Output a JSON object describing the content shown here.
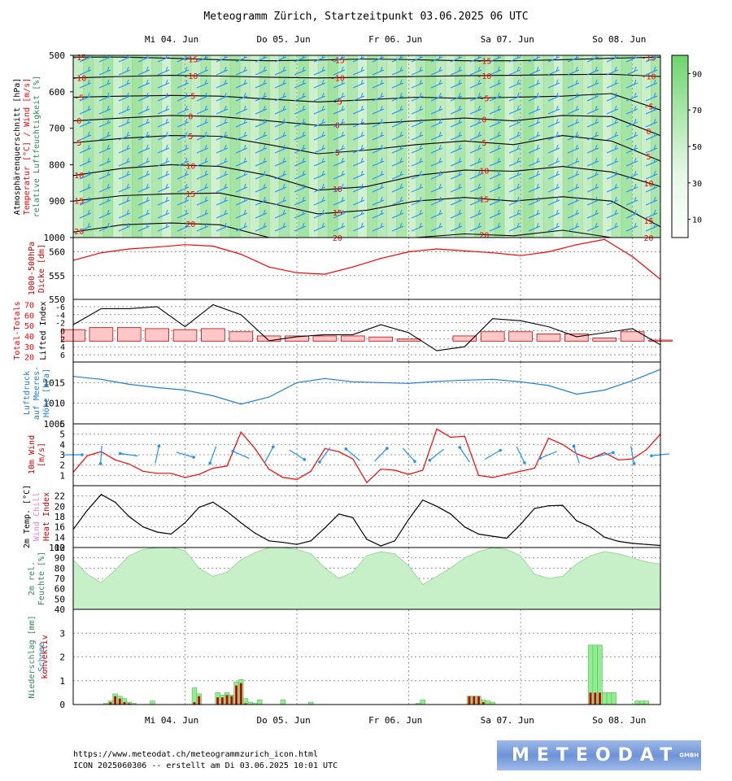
{
  "title": "Meteogramm Zürich, Startzeitpunkt 03.06.2025 06 UTC",
  "footer": {
    "url": "https://www.meteodat.ch/meteogrammzurich_icon.html",
    "run": "ICON 2025060306 -- erstellt am Di 03.06.2025 10:01 UTC"
  },
  "logo": {
    "text": "METEODAT",
    "suffix": "GMBH"
  },
  "colors": {
    "temp": "#ff0000",
    "wind": "#1e90ff",
    "humidity": "#9be09b",
    "precip": "#90ee90",
    "conv": "#cc0000",
    "grid": "#999999"
  },
  "chart_data": [
    {
      "type": "heatmap",
      "name": "atmosphere",
      "ylabel": [
        "Atmosphärenquerschnitt [hPa]",
        "Temperatur [°C] / Wind [m/s]",
        "relative Luftfeuchtigkeit [%]"
      ],
      "ylim": [
        1000,
        500
      ],
      "yticks": [
        500,
        600,
        700,
        800,
        900,
        1000
      ],
      "colorbar_ticks": [
        10,
        30,
        50,
        70,
        90
      ],
      "x_range_hours": [
        0,
        126
      ],
      "day_labels": [
        "Mi 04. Jun",
        "Do 05. Jun",
        "Fr 06. Jun",
        "Sa 07. Jun",
        "So 08. Jun"
      ],
      "isotherms": [
        {
          "label": "-15",
          "p": [
            505,
            505,
            508,
            512,
            515,
            513,
            510,
            512,
            515,
            515,
            512,
            508,
            505
          ]
        },
        {
          "label": "-10",
          "p": [
            562,
            558,
            555,
            557,
            560,
            562,
            560,
            558,
            556,
            555,
            553,
            552,
            558
          ]
        },
        {
          "label": "-5",
          "p": [
            615,
            612,
            610,
            612,
            620,
            628,
            622,
            615,
            618,
            615,
            612,
            605,
            650
          ]
        },
        {
          "label": "0",
          "p": [
            680,
            672,
            665,
            668,
            680,
            692,
            688,
            680,
            672,
            680,
            665,
            668,
            720
          ]
        },
        {
          "label": "5",
          "p": [
            740,
            728,
            720,
            722,
            745,
            770,
            760,
            745,
            735,
            745,
            720,
            735,
            790
          ]
        },
        {
          "label": "10",
          "p": [
            830,
            810,
            800,
            805,
            830,
            870,
            860,
            830,
            815,
            818,
            805,
            820,
            860
          ]
        },
        {
          "label": "15",
          "p": [
            900,
            885,
            880,
            878,
            905,
            935,
            925,
            900,
            890,
            900,
            888,
            900,
            970
          ]
        },
        {
          "label": "20",
          "p": [
            985,
            965,
            960,
            965,
            1000,
            1000,
            1000,
            1000,
            990,
            995,
            980,
            1000,
            1000
          ]
        }
      ]
    },
    {
      "type": "line",
      "name": "thickness",
      "ylabel": [
        "1000-500hPa",
        "Dicke [dm]"
      ],
      "ylim": [
        550,
        563
      ],
      "yticks": [
        550,
        555,
        560
      ],
      "x": [
        0,
        6,
        12,
        18,
        24,
        30,
        36,
        42,
        48,
        54,
        60,
        66,
        72,
        78,
        84,
        90,
        96,
        102,
        108,
        114,
        120,
        126
      ],
      "series": [
        {
          "values": [
            558.2,
            559.8,
            560.6,
            561.0,
            561.5,
            561.2,
            559.5,
            556.8,
            555.6,
            555.3,
            556.8,
            558.6,
            560.0,
            560.6,
            560.2,
            559.8,
            559.2,
            560.0,
            561.5,
            562.6,
            559.0,
            554.2
          ]
        }
      ]
    },
    {
      "type": "bar",
      "name": "stability",
      "ylabel_left": [
        "Total-Totals"
      ],
      "ylabel_right": [
        "Lifted Index"
      ],
      "li_ticks": [
        -6,
        -4,
        -2,
        0,
        2,
        4,
        6
      ],
      "tt_ticks": [
        20,
        30,
        40,
        50,
        60,
        70
      ],
      "x": [
        0,
        6,
        12,
        18,
        24,
        30,
        36,
        42,
        48,
        54,
        60,
        66,
        72,
        78,
        84,
        90,
        96,
        102,
        108,
        114,
        120,
        126
      ],
      "lifted_index": [
        -1.5,
        -5.5,
        -5.5,
        -6.0,
        -1.0,
        -6.5,
        -4.0,
        2.5,
        1.5,
        1.0,
        1.0,
        -1.5,
        0.5,
        5.0,
        4.0,
        -3.0,
        -2.5,
        -1.0,
        1.5,
        0.5,
        -0.5,
        3.5
      ],
      "total_totals": [
        46,
        48,
        48,
        47,
        46,
        47,
        44,
        40,
        40,
        40,
        40,
        39,
        37,
        35,
        40,
        44,
        44,
        42,
        42,
        38,
        44,
        36
      ]
    },
    {
      "type": "line",
      "name": "pressure",
      "ylabel": [
        "Luftdruck",
        "auf Meeres-",
        "Höhe [hPa]"
      ],
      "ylim": [
        1005,
        1020
      ],
      "yticks": [
        1005,
        1010,
        1015
      ],
      "x": [
        0,
        6,
        12,
        18,
        24,
        30,
        36,
        42,
        48,
        54,
        60,
        66,
        72,
        78,
        84,
        90,
        96,
        102,
        108,
        114,
        120,
        126
      ],
      "series": [
        {
          "values": [
            1016.5,
            1015.8,
            1014.6,
            1013.8,
            1013.2,
            1011.8,
            1009.8,
            1011.5,
            1015.0,
            1016.0,
            1015.2,
            1015.0,
            1014.8,
            1015.3,
            1015.6,
            1015.8,
            1015.2,
            1014.3,
            1012.2,
            1013.2,
            1015.5,
            1018.2
          ]
        }
      ]
    },
    {
      "type": "line",
      "name": "wind10m",
      "ylabel": [
        "10m Wind",
        "[m/s]"
      ],
      "ylim": [
        0,
        6
      ],
      "yticks": [
        1,
        2,
        3,
        4,
        5,
        6
      ],
      "x": [
        0,
        3,
        6,
        9,
        12,
        15,
        18,
        21,
        24,
        27,
        30,
        33,
        36,
        39,
        42,
        45,
        48,
        51,
        54,
        57,
        60,
        63,
        66,
        69,
        72,
        75,
        78,
        81,
        84,
        87,
        90,
        93,
        96,
        99,
        102,
        105,
        108,
        111,
        114,
        117,
        120,
        123,
        126
      ],
      "series": [
        {
          "values": [
            1.3,
            2.9,
            3.3,
            2.5,
            2.1,
            1.4,
            1.2,
            1.2,
            0.8,
            1.1,
            1.7,
            1.9,
            5.2,
            3.6,
            1.6,
            0.8,
            0.6,
            1.4,
            3.6,
            3.3,
            2.6,
            0.3,
            1.6,
            1.5,
            1.1,
            1.5,
            5.5,
            4.7,
            4.8,
            1.0,
            0.8,
            1.1,
            1.4,
            1.7,
            4.6,
            4.0,
            3.1,
            2.6,
            3.2,
            2.5,
            2.6,
            3.5,
            5.0
          ]
        }
      ]
    },
    {
      "type": "line",
      "name": "temperature2m",
      "ylabel": [
        "2m Temp. [°C]",
        "Wind Chill",
        "Heat Index"
      ],
      "ylim": [
        12,
        24
      ],
      "yticks": [
        12,
        14,
        16,
        18,
        20,
        22
      ],
      "x": [
        0,
        3,
        6,
        9,
        12,
        15,
        18,
        21,
        24,
        27,
        30,
        33,
        36,
        39,
        42,
        45,
        48,
        51,
        54,
        57,
        60,
        63,
        66,
        69,
        72,
        75,
        78,
        81,
        84,
        87,
        90,
        93,
        96,
        99,
        102,
        105,
        108,
        111,
        114,
        117,
        120,
        123,
        126
      ],
      "series": [
        {
          "values": [
            15.5,
            19.2,
            22.3,
            20.8,
            18.0,
            16.0,
            15.0,
            14.6,
            16.8,
            19.8,
            20.8,
            19.0,
            16.8,
            14.8,
            13.3,
            13.0,
            12.6,
            13.3,
            15.8,
            18.5,
            17.8,
            13.6,
            12.3,
            13.3,
            17.5,
            21.2,
            20.0,
            18.5,
            16.0,
            14.6,
            14.2,
            13.8,
            16.5,
            19.6,
            20.1,
            20.2,
            17.2,
            16.0,
            14.0,
            13.2,
            12.8,
            12.6,
            12.4
          ]
        }
      ]
    },
    {
      "type": "area",
      "name": "humidity2m",
      "ylabel": [
        "2m rel.",
        "Feuchte [%]"
      ],
      "ylim": [
        40,
        100
      ],
      "yticks": [
        40,
        50,
        60,
        70,
        80,
        90,
        100
      ],
      "x": [
        0,
        3,
        6,
        9,
        12,
        15,
        18,
        21,
        24,
        27,
        30,
        33,
        36,
        39,
        42,
        45,
        48,
        51,
        54,
        57,
        60,
        63,
        66,
        69,
        72,
        75,
        78,
        81,
        84,
        87,
        90,
        93,
        96,
        99,
        102,
        105,
        108,
        111,
        114,
        117,
        120,
        123,
        126
      ],
      "series": [
        {
          "values": [
            88,
            74,
            66,
            78,
            92,
            98,
            100,
            100,
            97,
            80,
            72,
            76,
            88,
            95,
            100,
            100,
            98,
            94,
            80,
            70,
            76,
            92,
            96,
            94,
            82,
            64,
            72,
            80,
            90,
            96,
            100,
            98,
            92,
            74,
            70,
            72,
            84,
            92,
            96,
            94,
            90,
            86,
            84
          ]
        }
      ]
    },
    {
      "type": "bar",
      "name": "precipitation",
      "ylabel": [
        "Niederschlag [mm]",
        "Schnee",
        "konvektiv"
      ],
      "ylim": [
        0,
        4
      ],
      "yticks": [
        0,
        1,
        2,
        3
      ],
      "day_labels": [
        "Mi 04. Jun",
        "Do 05. Jun",
        "Fr 06. Jun",
        "Sa 07. Jun",
        "So 08. Jun"
      ],
      "x": [
        7,
        8,
        9,
        10,
        11,
        12,
        13,
        17,
        26,
        27,
        31,
        32,
        33,
        34,
        35,
        36,
        37,
        38,
        39,
        40,
        45,
        51,
        74,
        75,
        85,
        86,
        87,
        88,
        89,
        90,
        111,
        112,
        113,
        114,
        115,
        116,
        121,
        122,
        123
      ],
      "total": [
        0.05,
        0.15,
        0.45,
        0.35,
        0.25,
        0.1,
        0.05,
        0.15,
        0.7,
        0.45,
        0.5,
        0.4,
        0.5,
        0.4,
        0.95,
        1.05,
        0.25,
        0.1,
        0.05,
        0.2,
        0.2,
        0.1,
        0.05,
        0.2,
        0.35,
        0.35,
        0.35,
        0.2,
        0.15,
        0.1,
        2.5,
        2.5,
        2.5,
        0.5,
        0.5,
        0.5,
        0.15,
        0.15,
        0.15
      ],
      "convective": [
        0,
        0.1,
        0.35,
        0.25,
        0.1,
        0.05,
        0,
        0,
        0.1,
        0.35,
        0.3,
        0.3,
        0.4,
        0.35,
        0.8,
        0.9,
        0.05,
        0,
        0,
        0,
        0,
        0,
        0,
        0,
        0.35,
        0.35,
        0.35,
        0.1,
        0,
        0,
        0.5,
        0.5,
        0.5,
        0,
        0,
        0,
        0,
        0,
        0
      ]
    }
  ]
}
